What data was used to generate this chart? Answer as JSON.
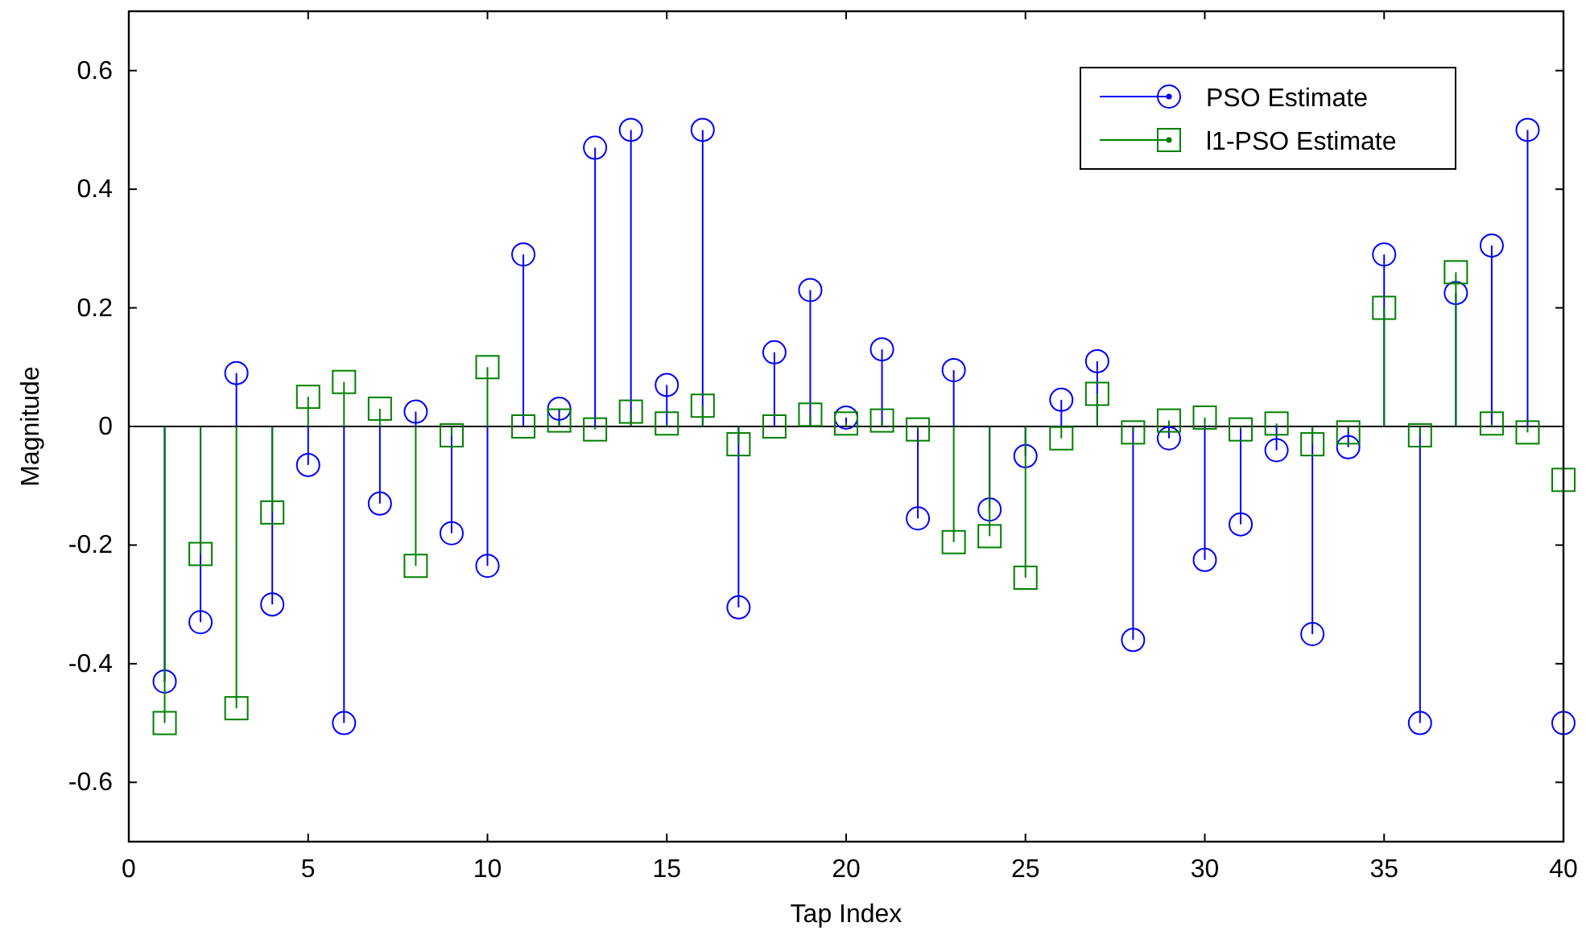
{
  "chart_data": {
    "type": "lollipop",
    "xlabel": "Tap Index",
    "ylabel": "Magnitude",
    "x": [
      1,
      2,
      3,
      4,
      5,
      6,
      7,
      8,
      9,
      10,
      11,
      12,
      13,
      14,
      15,
      16,
      17,
      18,
      19,
      20,
      21,
      22,
      23,
      24,
      25,
      26,
      27,
      28,
      29,
      30,
      31,
      32,
      33,
      34,
      35,
      36,
      37,
      38,
      39,
      40
    ],
    "series": [
      {
        "name": "PSO Estimate",
        "color": "#0000ff",
        "marker": "circle",
        "values": [
          -0.43,
          -0.33,
          0.09,
          -0.3,
          -0.065,
          -0.5,
          -0.13,
          0.025,
          -0.18,
          -0.235,
          0.29,
          0.03,
          0.47,
          0.5,
          0.07,
          0.5,
          -0.305,
          0.125,
          0.23,
          0.015,
          0.13,
          -0.155,
          0.095,
          -0.14,
          -0.05,
          0.045,
          0.11,
          -0.36,
          -0.02,
          -0.225,
          -0.165,
          -0.04,
          -0.35,
          -0.035,
          0.29,
          -0.5,
          0.225,
          0.305,
          0.5,
          -0.5
        ]
      },
      {
        "name": "l1-PSO Estimate",
        "color": "#008000",
        "marker": "square",
        "values": [
          -0.5,
          -0.215,
          -0.475,
          -0.145,
          0.05,
          0.075,
          0.03,
          -0.235,
          -0.015,
          0.1,
          0,
          0.01,
          -0.005,
          0.025,
          0.005,
          0.035,
          -0.03,
          0,
          0.02,
          0.005,
          0.01,
          -0.005,
          -0.195,
          -0.185,
          -0.255,
          -0.02,
          0.055,
          -0.01,
          0.01,
          0.015,
          -0.005,
          0.005,
          -0.03,
          -0.01,
          0.2,
          -0.015,
          0.26,
          0.005,
          -0.01,
          -0.09
        ]
      }
    ],
    "xlim": [
      0,
      40
    ],
    "xticks": [
      0,
      5,
      10,
      15,
      20,
      25,
      30,
      35,
      40
    ],
    "ylim": [
      -0.7,
      0.7
    ],
    "yticks": [
      -0.6,
      -0.4,
      -0.2,
      0,
      0.2,
      0.4,
      0.6
    ],
    "legend": "top right"
  }
}
